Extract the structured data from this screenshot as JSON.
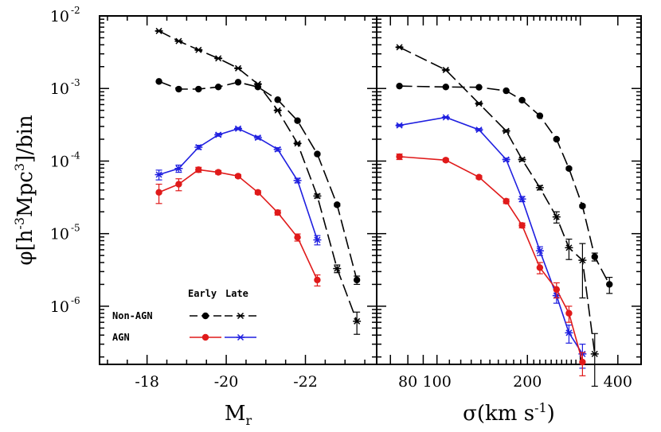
{
  "chart_data": [
    {
      "type": "line",
      "panel": "left",
      "xlabel": "M",
      "xlabel_sub": "r",
      "ylabel_prefix": "φ[h",
      "ylabel_exp": "-3",
      "ylabel_mid": "Mpc",
      "ylabel_exp2": "3",
      "ylabel_suffix": "]/bin",
      "xscale": "linear",
      "xlim": [
        -16.8,
        -23.8
      ],
      "yscale": "log",
      "ylim": [
        1.58e-07,
        0.01
      ],
      "x_ticks": [
        -18,
        -20,
        -22
      ],
      "x_tick_labels": [
        "-18",
        "-20",
        "-22"
      ],
      "y_ticks": [
        0.01,
        0.001,
        0.0001,
        1e-05,
        1e-06
      ],
      "y_tick_bases": [
        "10",
        "10",
        "10",
        "10",
        "10"
      ],
      "y_tick_exps": [
        "-2",
        "-3",
        "-4",
        "-5",
        "-6"
      ],
      "series": [
        {
          "name": "Non-AGN Late",
          "color": "#000000",
          "marker": "star",
          "dash": "16,6",
          "x": [
            -18.3,
            -18.8,
            -19.3,
            -19.8,
            -20.3,
            -20.8,
            -21.3,
            -21.8,
            -22.3,
            -22.8,
            -23.3
          ],
          "y": [
            0.0062,
            0.0045,
            0.0034,
            0.0026,
            0.0019,
            0.00115,
            0.0005,
            0.000175,
            3.3e-05,
            3.3e-06,
            6.2e-07
          ],
          "err": [
            8e-05,
            6e-05,
            5e-05,
            4e-05,
            3e-05,
            2e-05,
            1e-05,
            5e-06,
            2e-06,
            4e-07,
            2.1e-07
          ]
        },
        {
          "name": "Non-AGN Early",
          "color": "#000000",
          "marker": "circle",
          "dash": "16,6",
          "x": [
            -18.3,
            -18.8,
            -19.3,
            -19.8,
            -20.3,
            -20.8,
            -21.3,
            -21.8,
            -22.3,
            -22.8,
            -23.3
          ],
          "y": [
            0.00125,
            0.00098,
            0.00098,
            0.00105,
            0.00122,
            0.00105,
            0.0007,
            0.00036,
            0.000125,
            2.5e-05,
            2.3e-06
          ],
          "err": [
            2e-05,
            2e-05,
            2e-05,
            2e-05,
            2e-05,
            2e-05,
            1e-05,
            8e-06,
            4e-06,
            1e-06,
            3e-07
          ]
        },
        {
          "name": "AGN Late",
          "color": "#1f1fe0",
          "marker": "star",
          "dash": "",
          "x": [
            -18.3,
            -18.8,
            -19.3,
            -19.8,
            -20.3,
            -20.8,
            -21.3,
            -21.8,
            -22.3
          ],
          "y": [
            6.5e-05,
            7.9e-05,
            0.000155,
            0.00023,
            0.00028,
            0.00021,
            0.000145,
            5.4e-05,
            8.2e-06
          ],
          "err": [
            1e-05,
            9e-06,
            1e-05,
            1e-05,
            1e-05,
            1e-05,
            8e-06,
            4e-06,
            1.2e-06
          ]
        },
        {
          "name": "AGN Early",
          "color": "#e01a1a",
          "marker": "circle",
          "dash": "",
          "x": [
            -18.3,
            -18.8,
            -19.3,
            -19.8,
            -20.3,
            -20.8,
            -21.3,
            -21.8,
            -22.3
          ],
          "y": [
            3.7e-05,
            4.8e-05,
            7.6e-05,
            7e-05,
            6.2e-05,
            3.7e-05,
            1.95e-05,
            8.9e-06,
            2.3e-06
          ],
          "err": [
            1.1e-05,
            9e-06,
            6e-06,
            4e-06,
            3e-06,
            2e-06,
            1.5e-06,
            1e-06,
            4e-07
          ]
        }
      ]
    },
    {
      "type": "line",
      "panel": "right",
      "xlabel": "σ(km s",
      "xlabel_exp": "-1",
      "xlabel_suffix": ")",
      "xscale": "log",
      "xlim": [
        63,
        478
      ],
      "yscale": "log",
      "ylim": [
        1.58e-07,
        0.01
      ],
      "x_ticks": [
        80,
        100,
        200,
        400
      ],
      "x_tick_labels": [
        "80",
        "100",
        "200",
        "400"
      ],
      "x_minor_ticks": [
        70,
        90,
        300
      ],
      "series": [
        {
          "name": "Non-AGN Late",
          "color": "#000000",
          "marker": "star",
          "dash": "16,6",
          "x": [
            75,
            107,
            138,
            170,
            192,
            220,
            250,
            275,
            305,
            335
          ],
          "y": [
            0.0037,
            0.0018,
            0.00062,
            0.00026,
            0.000105,
            4.3e-05,
            1.7e-05,
            6.4e-06,
            4.3e-06,
            2.2e-07
          ],
          "err": [
            6e-05,
            4e-05,
            2e-05,
            1e-05,
            5e-06,
            3e-06,
            3e-06,
            2e-06,
            3e-06,
            2e-07
          ]
        },
        {
          "name": "Non-AGN Early",
          "color": "#000000",
          "marker": "circle",
          "dash": "16,6",
          "x": [
            75,
            107,
            138,
            170,
            192,
            220,
            250,
            275,
            305,
            335,
            375
          ],
          "y": [
            0.00108,
            0.00105,
            0.00104,
            0.00093,
            0.00069,
            0.00042,
            0.0002,
            7.9e-05,
            2.4e-05,
            4.8e-06,
            2e-06
          ],
          "err": [
            2e-05,
            2e-05,
            2e-05,
            2e-05,
            2e-05,
            1e-05,
            6e-06,
            3e-06,
            1e-06,
            6e-07,
            5e-07
          ]
        },
        {
          "name": "AGN Late",
          "color": "#1f1fe0",
          "marker": "star",
          "dash": "",
          "x": [
            75,
            107,
            138,
            170,
            192,
            220,
            250,
            275,
            305
          ],
          "y": [
            0.00031,
            0.0004,
            0.00027,
            0.000105,
            3e-05,
            5.8e-06,
            1.4e-06,
            4.3e-07,
            2.2e-07
          ],
          "err": [
            1e-05,
            1e-05,
            1e-05,
            5e-06,
            2.5e-06,
            8e-07,
            3e-07,
            1.2e-07,
            8e-08
          ]
        },
        {
          "name": "AGN Early",
          "color": "#e01a1a",
          "marker": "circle",
          "dash": "",
          "x": [
            75,
            107,
            138,
            170,
            192,
            220,
            250,
            275,
            305
          ],
          "y": [
            0.000115,
            0.000103,
            6e-05,
            2.8e-05,
            1.3e-05,
            3.4e-06,
            1.7e-06,
            8e-07,
            1.7e-07
          ],
          "err": [
            1e-05,
            5e-06,
            3e-06,
            2e-06,
            1e-06,
            6e-07,
            4e-07,
            2e-07,
            6e-08
          ]
        }
      ]
    }
  ],
  "legend": {
    "header_early": "Early",
    "header_late": "Late",
    "row1_label": "Non-AGN",
    "row2_label": "AGN",
    "placement": "bottom-left of left panel"
  }
}
